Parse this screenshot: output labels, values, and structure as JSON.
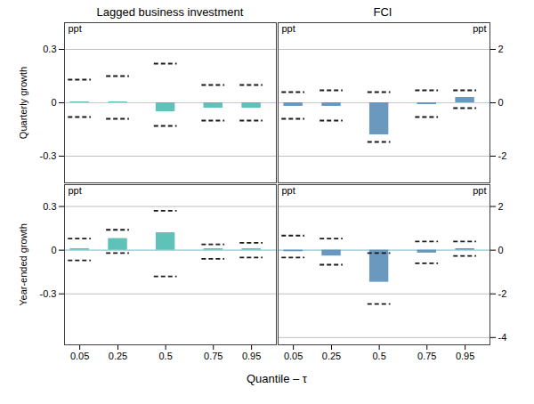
{
  "chart_data": [
    {
      "type": "bar",
      "title": "Lagged business investment",
      "ylabel": "Quarterly growth",
      "x": [
        0.05,
        0.25,
        0.5,
        0.75,
        0.95
      ],
      "values": [
        0.005,
        0.005,
        -0.05,
        -0.03,
        -0.03
      ],
      "ci_upper": [
        0.13,
        0.15,
        0.22,
        0.1,
        0.1
      ],
      "ci_lower": [
        -0.08,
        -0.09,
        -0.13,
        -0.1,
        -0.1
      ],
      "color": "#4cbbb0",
      "xlim": [
        -0.03,
        1.08
      ],
      "ylim": [
        -0.45,
        0.45
      ],
      "yticks": [
        -0.3,
        0,
        0.3
      ],
      "grid": true,
      "annotations": [
        "ppt"
      ]
    },
    {
      "type": "bar",
      "title": "FCI",
      "x": [
        0.05,
        0.25,
        0.5,
        0.75,
        0.95
      ],
      "values": [
        -0.02,
        -0.02,
        -0.18,
        -0.01,
        0.03
      ],
      "ci_upper": [
        0.06,
        0.07,
        0.06,
        0.07,
        0.07
      ],
      "ci_lower": [
        -0.09,
        -0.1,
        -0.22,
        -0.08,
        -0.03
      ],
      "color": "#5b8db8",
      "xlim": [
        -0.03,
        1.08
      ],
      "ylim": [
        -0.45,
        0.45
      ],
      "y2lim": [
        -3,
        3
      ],
      "y2ticks": [
        -2,
        0,
        2
      ],
      "grid": true,
      "annotations": [
        "ppt",
        "ppt"
      ]
    },
    {
      "type": "bar",
      "ylabel": "Year-ended growth",
      "xlabel": "Quantile – τ",
      "x": [
        0.05,
        0.25,
        0.5,
        0.75,
        0.95
      ],
      "values": [
        0.01,
        0.08,
        0.12,
        0.01,
        0.01
      ],
      "ci_upper": [
        0.08,
        0.14,
        0.27,
        0.04,
        0.05
      ],
      "ci_lower": [
        -0.07,
        -0.02,
        -0.18,
        -0.06,
        -0.05
      ],
      "color": "#4cbbb0",
      "xlim": [
        -0.03,
        1.08
      ],
      "xticks": [
        0.05,
        0.25,
        0.5,
        0.75,
        0.95
      ],
      "ylim": [
        -0.65,
        0.45
      ],
      "yticks": [
        -0.3,
        0,
        0.3
      ],
      "grid": true,
      "annotations": [
        "ppt"
      ]
    },
    {
      "type": "bar",
      "x": [
        0.05,
        0.25,
        0.5,
        0.75,
        0.95
      ],
      "values": [
        -0.01,
        -0.04,
        -0.22,
        -0.02,
        0.01
      ],
      "ci_upper": [
        0.1,
        0.08,
        -0.02,
        0.06,
        0.06
      ],
      "ci_lower": [
        -0.05,
        -0.1,
        -0.37,
        -0.09,
        -0.04
      ],
      "color": "#5b8db8",
      "xlim": [
        -0.03,
        1.08
      ],
      "xticks": [
        0.05,
        0.25,
        0.5,
        0.75,
        0.95
      ],
      "ylim": [
        -0.65,
        0.45
      ],
      "y2lim": [
        -4.333333333333333,
        3
      ],
      "y2ticks": [
        -4,
        -2,
        0,
        2
      ],
      "grid": true,
      "annotations": [
        "ppt",
        "ppt"
      ]
    }
  ]
}
